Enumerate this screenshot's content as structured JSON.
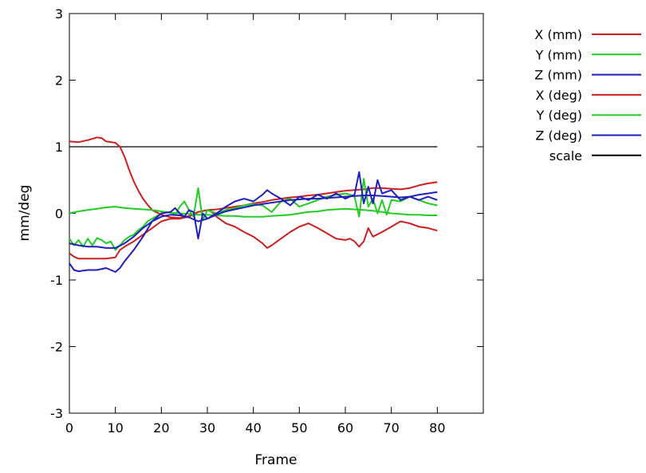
{
  "chart_data": {
    "type": "line",
    "title": "",
    "xlabel": "Frame",
    "ylabel": "mm/deg",
    "xlim": [
      0,
      90
    ],
    "ylim": [
      -3,
      3
    ],
    "x_ticks": [
      0,
      10,
      20,
      30,
      40,
      50,
      60,
      70,
      80
    ],
    "y_ticks": [
      -3,
      -2,
      -1,
      0,
      1,
      2,
      3
    ],
    "grid": false,
    "legend_position": "outside-top-right",
    "series": [
      {
        "name": "X (mm)",
        "color": "#cc1f1f",
        "points": [
          [
            0,
            1.08
          ],
          [
            2,
            1.07
          ],
          [
            4,
            1.1
          ],
          [
            6,
            1.14
          ],
          [
            7,
            1.13
          ],
          [
            8,
            1.08
          ],
          [
            10,
            1.06
          ],
          [
            11,
            1.0
          ],
          [
            12,
            0.85
          ],
          [
            13,
            0.65
          ],
          [
            14,
            0.48
          ],
          [
            15,
            0.34
          ],
          [
            16,
            0.22
          ],
          [
            17,
            0.13
          ],
          [
            18,
            0.05
          ],
          [
            20,
            -0.02
          ],
          [
            22,
            -0.06
          ],
          [
            24,
            -0.07
          ],
          [
            26,
            -0.04
          ],
          [
            28,
            0.02
          ],
          [
            30,
            0.05
          ],
          [
            32,
            0.06
          ],
          [
            34,
            0.08
          ],
          [
            36,
            0.1
          ],
          [
            38,
            0.12
          ],
          [
            40,
            0.15
          ],
          [
            42,
            0.17
          ],
          [
            44,
            0.2
          ],
          [
            46,
            0.22
          ],
          [
            48,
            0.24
          ],
          [
            50,
            0.25
          ],
          [
            52,
            0.27
          ],
          [
            54,
            0.28
          ],
          [
            56,
            0.3
          ],
          [
            58,
            0.32
          ],
          [
            60,
            0.34
          ],
          [
            62,
            0.35
          ],
          [
            64,
            0.36
          ],
          [
            66,
            0.38
          ],
          [
            68,
            0.38
          ],
          [
            70,
            0.37
          ],
          [
            72,
            0.36
          ],
          [
            74,
            0.38
          ],
          [
            76,
            0.42
          ],
          [
            78,
            0.45
          ],
          [
            80,
            0.47
          ]
        ]
      },
      {
        "name": "Y (mm)",
        "color": "#22cc22",
        "points": [
          [
            0,
            0.0
          ],
          [
            2,
            0.03
          ],
          [
            4,
            0.05
          ],
          [
            6,
            0.07
          ],
          [
            8,
            0.09
          ],
          [
            10,
            0.1
          ],
          [
            11,
            0.09
          ],
          [
            12,
            0.08
          ],
          [
            14,
            0.07
          ],
          [
            16,
            0.06
          ],
          [
            18,
            0.05
          ],
          [
            20,
            0.03
          ],
          [
            22,
            0.01
          ],
          [
            24,
            0.0
          ],
          [
            26,
            -0.01
          ],
          [
            28,
            -0.02
          ],
          [
            30,
            -0.02
          ],
          [
            32,
            -0.03
          ],
          [
            34,
            -0.04
          ],
          [
            36,
            -0.04
          ],
          [
            38,
            -0.05
          ],
          [
            40,
            -0.05
          ],
          [
            42,
            -0.05
          ],
          [
            44,
            -0.04
          ],
          [
            46,
            -0.03
          ],
          [
            48,
            -0.02
          ],
          [
            50,
            0.0
          ],
          [
            52,
            0.02
          ],
          [
            54,
            0.03
          ],
          [
            56,
            0.05
          ],
          [
            58,
            0.06
          ],
          [
            60,
            0.07
          ],
          [
            62,
            0.06
          ],
          [
            64,
            0.05
          ],
          [
            66,
            0.04
          ],
          [
            68,
            0.02
          ],
          [
            70,
            0.0
          ],
          [
            72,
            -0.01
          ],
          [
            74,
            -0.02
          ],
          [
            76,
            -0.02
          ],
          [
            78,
            -0.03
          ],
          [
            80,
            -0.03
          ]
        ]
      },
      {
        "name": "Z (mm)",
        "color": "#1f1fbb",
        "points": [
          [
            0,
            -0.45
          ],
          [
            2,
            -0.48
          ],
          [
            4,
            -0.5
          ],
          [
            6,
            -0.5
          ],
          [
            8,
            -0.52
          ],
          [
            10,
            -0.52
          ],
          [
            12,
            -0.45
          ],
          [
            14,
            -0.35
          ],
          [
            16,
            -0.22
          ],
          [
            18,
            -0.12
          ],
          [
            20,
            -0.05
          ],
          [
            22,
            -0.02
          ],
          [
            24,
            -0.03
          ],
          [
            26,
            -0.06
          ],
          [
            28,
            -0.12
          ],
          [
            30,
            -0.08
          ],
          [
            32,
            -0.02
          ],
          [
            34,
            0.03
          ],
          [
            36,
            0.06
          ],
          [
            38,
            0.09
          ],
          [
            40,
            0.12
          ],
          [
            42,
            0.14
          ],
          [
            44,
            0.16
          ],
          [
            46,
            0.18
          ],
          [
            48,
            0.2
          ],
          [
            50,
            0.21
          ],
          [
            52,
            0.22
          ],
          [
            54,
            0.22
          ],
          [
            56,
            0.23
          ],
          [
            58,
            0.24
          ],
          [
            60,
            0.25
          ],
          [
            62,
            0.26
          ],
          [
            64,
            0.27
          ],
          [
            66,
            0.27
          ],
          [
            68,
            0.26
          ],
          [
            70,
            0.25
          ],
          [
            72,
            0.24
          ],
          [
            74,
            0.25
          ],
          [
            76,
            0.28
          ],
          [
            78,
            0.3
          ],
          [
            80,
            0.32
          ]
        ]
      },
      {
        "name": "X (deg)",
        "color": "#cc1f1f",
        "points": [
          [
            0,
            -0.6
          ],
          [
            1,
            -0.65
          ],
          [
            2,
            -0.68
          ],
          [
            4,
            -0.68
          ],
          [
            6,
            -0.68
          ],
          [
            8,
            -0.68
          ],
          [
            10,
            -0.66
          ],
          [
            11,
            -0.55
          ],
          [
            12,
            -0.5
          ],
          [
            14,
            -0.42
          ],
          [
            16,
            -0.32
          ],
          [
            18,
            -0.22
          ],
          [
            20,
            -0.12
          ],
          [
            22,
            -0.08
          ],
          [
            24,
            -0.08
          ],
          [
            26,
            -0.05
          ],
          [
            28,
            0.02
          ],
          [
            30,
            0.05
          ],
          [
            31,
            0.02
          ],
          [
            32,
            -0.05
          ],
          [
            34,
            -0.15
          ],
          [
            36,
            -0.2
          ],
          [
            38,
            -0.28
          ],
          [
            40,
            -0.35
          ],
          [
            42,
            -0.45
          ],
          [
            43,
            -0.52
          ],
          [
            44,
            -0.48
          ],
          [
            46,
            -0.38
          ],
          [
            48,
            -0.28
          ],
          [
            50,
            -0.2
          ],
          [
            52,
            -0.15
          ],
          [
            54,
            -0.22
          ],
          [
            56,
            -0.3
          ],
          [
            58,
            -0.38
          ],
          [
            60,
            -0.4
          ],
          [
            61,
            -0.38
          ],
          [
            62,
            -0.42
          ],
          [
            63,
            -0.5
          ],
          [
            64,
            -0.42
          ],
          [
            65,
            -0.22
          ],
          [
            66,
            -0.35
          ],
          [
            68,
            -0.28
          ],
          [
            70,
            -0.2
          ],
          [
            72,
            -0.12
          ],
          [
            74,
            -0.15
          ],
          [
            76,
            -0.2
          ],
          [
            78,
            -0.22
          ],
          [
            80,
            -0.26
          ]
        ]
      },
      {
        "name": "Y (deg)",
        "color": "#22cc22",
        "points": [
          [
            0,
            -0.38
          ],
          [
            1,
            -0.48
          ],
          [
            2,
            -0.4
          ],
          [
            3,
            -0.5
          ],
          [
            4,
            -0.38
          ],
          [
            5,
            -0.48
          ],
          [
            6,
            -0.37
          ],
          [
            7,
            -0.4
          ],
          [
            8,
            -0.45
          ],
          [
            9,
            -0.42
          ],
          [
            10,
            -0.55
          ],
          [
            11,
            -0.48
          ],
          [
            12,
            -0.4
          ],
          [
            13,
            -0.35
          ],
          [
            14,
            -0.32
          ],
          [
            15,
            -0.25
          ],
          [
            16,
            -0.2
          ],
          [
            17,
            -0.12
          ],
          [
            18,
            -0.08
          ],
          [
            20,
            0.0
          ],
          [
            22,
            0.02
          ],
          [
            23,
            -0.02
          ],
          [
            24,
            0.1
          ],
          [
            25,
            0.18
          ],
          [
            26,
            0.05
          ],
          [
            27,
            -0.05
          ],
          [
            28,
            0.38
          ],
          [
            29,
            -0.1
          ],
          [
            30,
            0.05
          ],
          [
            32,
            0.0
          ],
          [
            34,
            0.05
          ],
          [
            36,
            0.08
          ],
          [
            38,
            0.12
          ],
          [
            40,
            0.14
          ],
          [
            42,
            0.12
          ],
          [
            44,
            0.02
          ],
          [
            46,
            0.18
          ],
          [
            48,
            0.22
          ],
          [
            50,
            0.1
          ],
          [
            52,
            0.15
          ],
          [
            54,
            0.2
          ],
          [
            56,
            0.25
          ],
          [
            58,
            0.28
          ],
          [
            60,
            0.3
          ],
          [
            61,
            0.28
          ],
          [
            62,
            0.25
          ],
          [
            63,
            -0.05
          ],
          [
            64,
            0.52
          ],
          [
            65,
            0.1
          ],
          [
            66,
            0.22
          ],
          [
            67,
            0.0
          ],
          [
            68,
            0.2
          ],
          [
            69,
            -0.02
          ],
          [
            70,
            0.2
          ],
          [
            72,
            0.18
          ],
          [
            74,
            0.25
          ],
          [
            76,
            0.2
          ],
          [
            78,
            0.15
          ],
          [
            80,
            0.12
          ]
        ]
      },
      {
        "name": "Z (deg)",
        "color": "#1f1fbb",
        "points": [
          [
            0,
            -0.75
          ],
          [
            1,
            -0.85
          ],
          [
            2,
            -0.87
          ],
          [
            4,
            -0.85
          ],
          [
            6,
            -0.85
          ],
          [
            8,
            -0.82
          ],
          [
            9,
            -0.85
          ],
          [
            10,
            -0.88
          ],
          [
            11,
            -0.82
          ],
          [
            12,
            -0.72
          ],
          [
            14,
            -0.55
          ],
          [
            16,
            -0.35
          ],
          [
            18,
            -0.12
          ],
          [
            20,
            0.0
          ],
          [
            22,
            0.02
          ],
          [
            23,
            0.08
          ],
          [
            24,
            0.0
          ],
          [
            25,
            -0.05
          ],
          [
            26,
            0.05
          ],
          [
            27,
            0.02
          ],
          [
            28,
            -0.38
          ],
          [
            29,
            0.0
          ],
          [
            30,
            -0.08
          ],
          [
            32,
            0.0
          ],
          [
            34,
            0.1
          ],
          [
            36,
            0.18
          ],
          [
            38,
            0.22
          ],
          [
            40,
            0.18
          ],
          [
            42,
            0.28
          ],
          [
            43,
            0.35
          ],
          [
            44,
            0.3
          ],
          [
            46,
            0.22
          ],
          [
            48,
            0.12
          ],
          [
            50,
            0.25
          ],
          [
            52,
            0.2
          ],
          [
            54,
            0.28
          ],
          [
            56,
            0.22
          ],
          [
            58,
            0.3
          ],
          [
            60,
            0.22
          ],
          [
            62,
            0.28
          ],
          [
            63,
            0.62
          ],
          [
            64,
            0.15
          ],
          [
            65,
            0.4
          ],
          [
            66,
            0.15
          ],
          [
            67,
            0.5
          ],
          [
            68,
            0.3
          ],
          [
            70,
            0.35
          ],
          [
            72,
            0.2
          ],
          [
            74,
            0.25
          ],
          [
            76,
            0.2
          ],
          [
            78,
            0.25
          ],
          [
            80,
            0.2
          ]
        ]
      },
      {
        "name": "scale",
        "color": "#000000",
        "points": [
          [
            0,
            1.0
          ],
          [
            80,
            1.0
          ]
        ]
      }
    ]
  }
}
